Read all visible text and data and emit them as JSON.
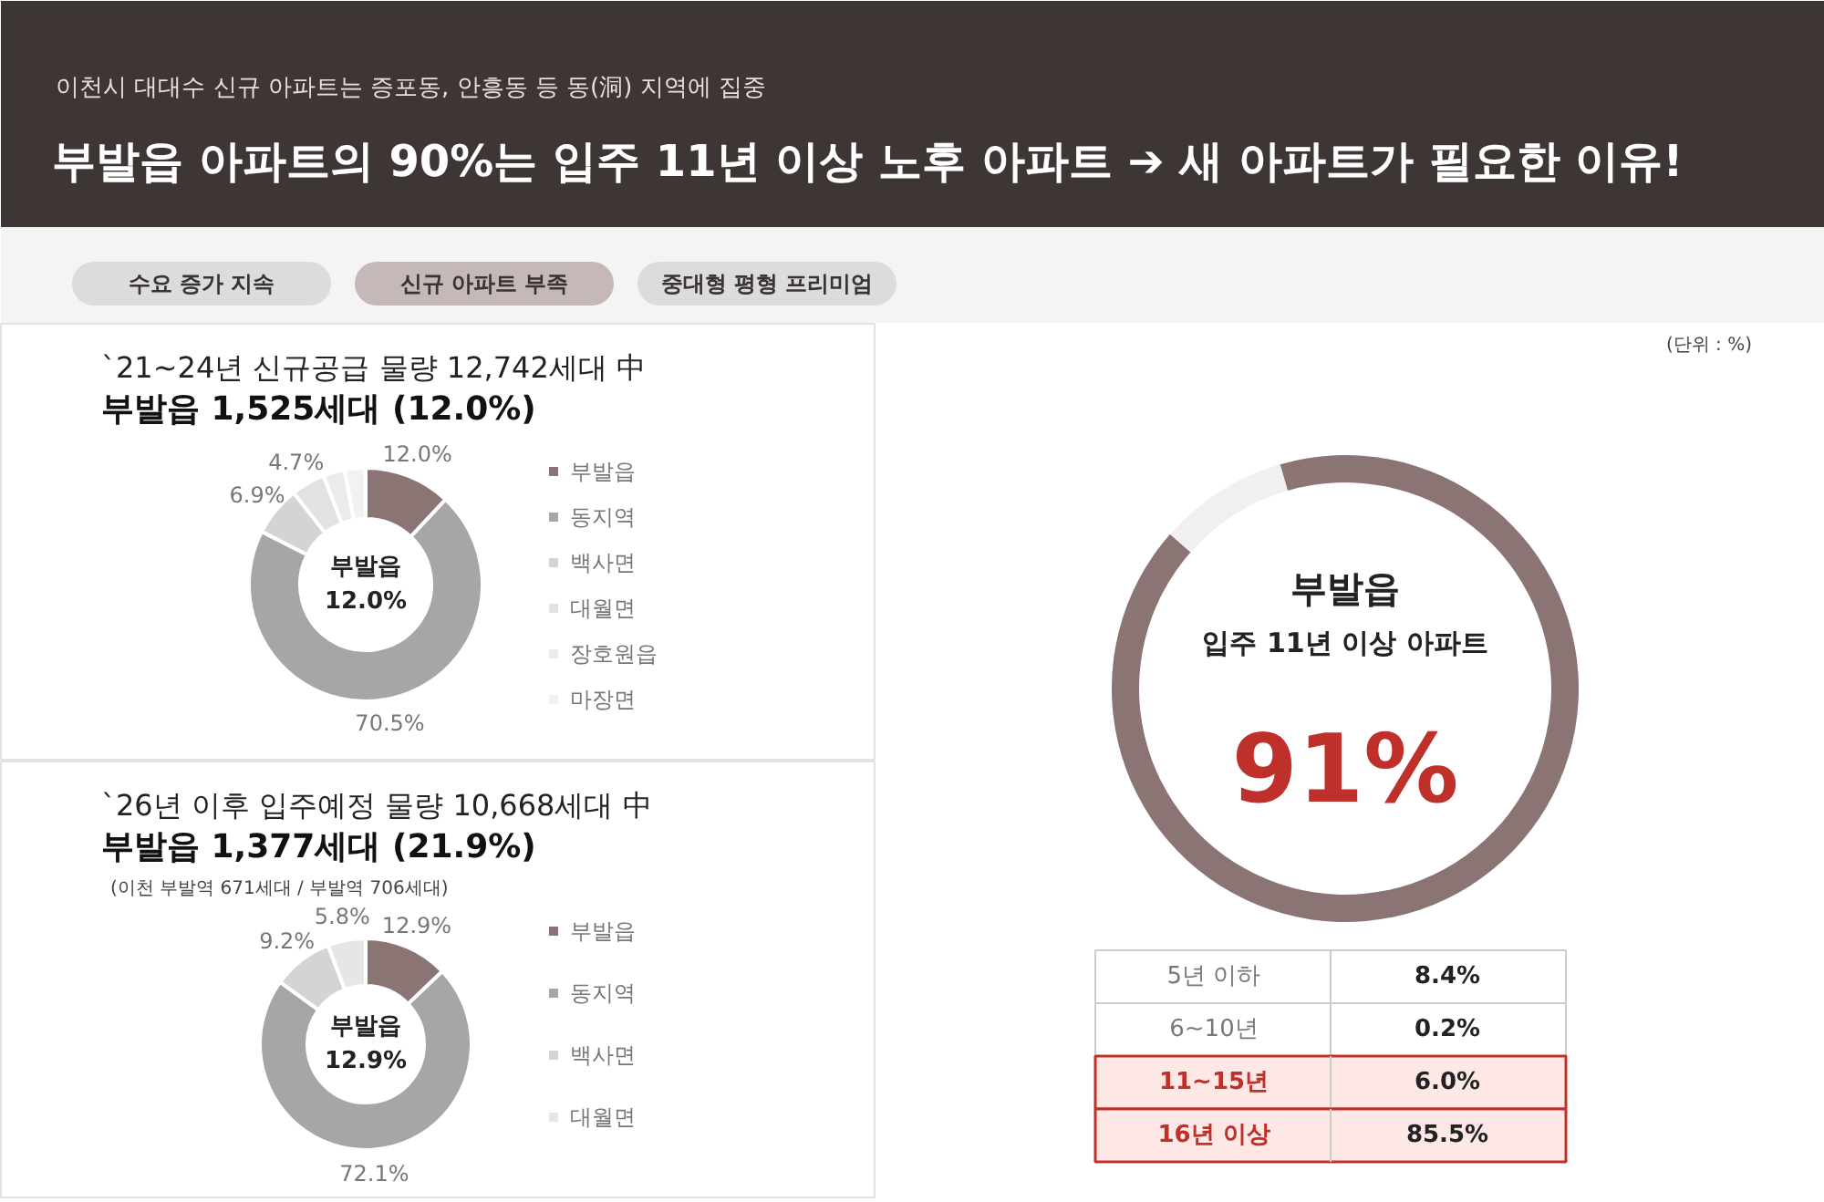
{
  "chart_data": [
    {
      "type": "other",
      "subtitle": "이천시 대대수 신규 아파트는 증포동, 안흥동 등 동(洞) 지역에 집중",
      "title": "부발읍 아파트의 90%는 입주 11년 이상 노후 아파트 ➔ 새 아파트가 필요한 이유!",
      "annotations": [
        "수요 증가 지속",
        "신규 아파트 부족",
        "중대형 평형 프리미엄"
      ],
      "colors": [
        "#dcdcdc",
        "#c4b8b8",
        "#dcdcdc"
      ]
    },
    {
      "type": "donut",
      "title": "`21~24년 신규공급 물량 12,742세대 中",
      "subtitle": "부발읍 1,525세대 (12.0%)",
      "categories": [
        "부발읍",
        "동지역",
        "백사면",
        "대월면",
        "장호원읍",
        "마장면"
      ],
      "values": [
        12.0,
        70.5,
        6.9,
        4.7,
        3.0,
        2.9
      ],
      "value_labels": [
        "12.0%",
        "70.5%",
        "6.9%",
        "4.7%",
        null,
        null
      ],
      "colors": [
        "#8a7474",
        "#a6a6a6",
        "#d4d4d4",
        "#e2e2e2",
        "#ebebeb",
        "#f2f2f2"
      ],
      "annotations": [
        "부발읍\n12.0%"
      ],
      "legend": "right"
    },
    {
      "type": "donut",
      "title": "`26년 이후 입주예정 물량 10,668세대 中",
      "subtitle": "부발읍 1,377세대 (21.9%)",
      "categories": [
        "부발읍",
        "동지역",
        "백사면",
        "대월면"
      ],
      "values": [
        12.9,
        72.1,
        9.2,
        5.8
      ],
      "value_labels": [
        "12.9%",
        "72.1%",
        "9.2%",
        "5.8%"
      ],
      "colors": [
        "#8a7474",
        "#a6a6a6",
        "#d4d4d4",
        "#e6e6e6"
      ],
      "annotations": [
        "(이천 부발역 671세대 / 부발역 706세대)",
        "부발읍\n12.9%"
      ],
      "legend": "right"
    },
    {
      "type": "donut",
      "title": "부발읍",
      "subtitle": "입주 11년 이상 아파트",
      "categories": [
        null,
        null
      ],
      "values": [
        91,
        9
      ],
      "value_labels": [
        "91%",
        null
      ],
      "colors": [
        "#8a7474",
        "#f0f0f0"
      ],
      "annotations": [
        "(단위 : %)"
      ]
    },
    {
      "type": "other",
      "categories": [
        "5년 이하",
        "6~10년",
        "11~15년",
        "16년 이상"
      ],
      "value_labels": [
        "8.4%",
        "0.2%",
        "6.0%",
        "85.5%"
      ],
      "colors": [
        "#ffffff",
        "#ffffff",
        "#fde8e6",
        "#fde8e6"
      ]
    }
  ]
}
